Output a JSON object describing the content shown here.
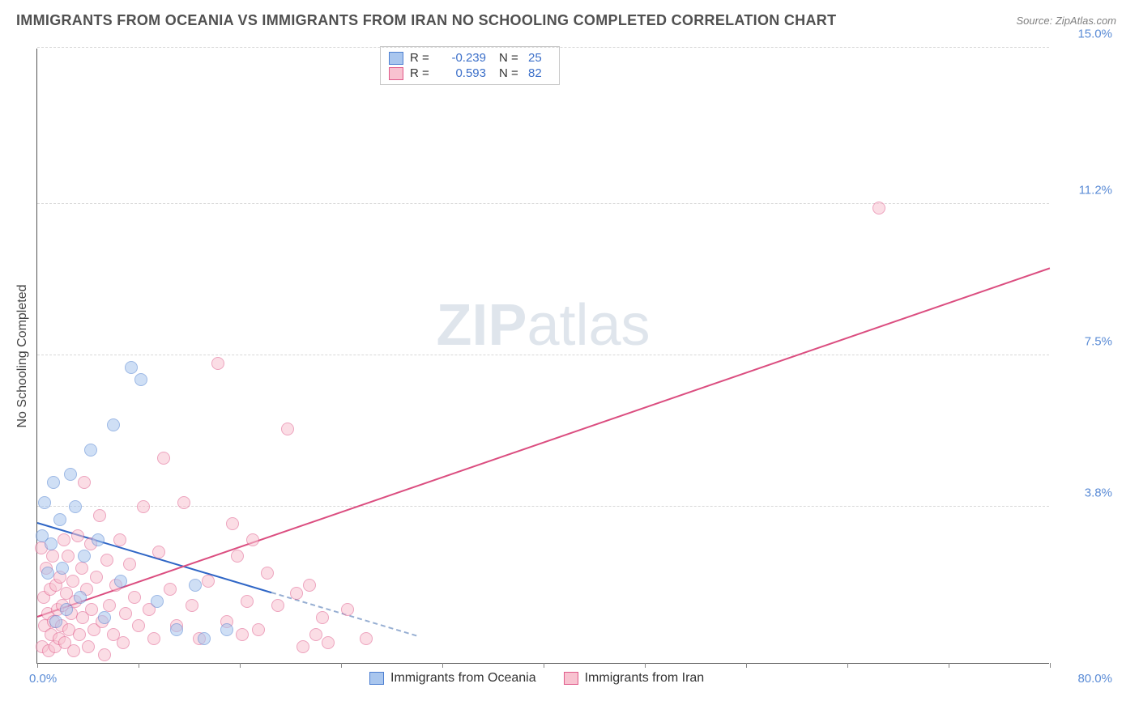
{
  "title": "IMMIGRANTS FROM OCEANIA VS IMMIGRANTS FROM IRAN NO SCHOOLING COMPLETED CORRELATION CHART",
  "source": "Source: ZipAtlas.com",
  "watermark_bold": "ZIP",
  "watermark_rest": "atlas",
  "ylabel": "No Schooling Completed",
  "chart": {
    "type": "scatter_with_regression",
    "background_color": "#ffffff",
    "grid_color": "#d8d8d8",
    "axis_color": "#555555",
    "tick_color": "#5b8cd6",
    "xlim": [
      0,
      80
    ],
    "ylim": [
      0,
      15
    ],
    "xtick_marks": [
      0,
      8,
      16,
      24,
      32,
      40,
      48,
      56,
      64,
      72,
      80
    ],
    "xtick_labels": {
      "min": "0.0%",
      "max": "80.0%"
    },
    "ygrid": [
      {
        "v": 3.8,
        "label": "3.8%"
      },
      {
        "v": 7.5,
        "label": "7.5%"
      },
      {
        "v": 11.2,
        "label": "11.2%"
      },
      {
        "v": 15.0,
        "label": "15.0%"
      }
    ],
    "marker_radius": 8,
    "marker_opacity": 0.55,
    "line_width": 2,
    "series": [
      {
        "key": "oceania",
        "label": "Immigrants from Oceania",
        "fill": "#a9c6ee",
        "stroke": "#4d7fd1",
        "line_color": "#2f66c6",
        "dash_color": "#96aed2",
        "R": "-0.239",
        "N": "25",
        "regression": {
          "x0": 0,
          "y0": 3.4,
          "x1": 18.5,
          "y1": 1.7,
          "extend_to_x": 30
        },
        "points": [
          [
            0.4,
            3.1
          ],
          [
            0.6,
            3.9
          ],
          [
            0.8,
            2.2
          ],
          [
            1.1,
            2.9
          ],
          [
            1.3,
            4.4
          ],
          [
            1.5,
            1.0
          ],
          [
            1.8,
            3.5
          ],
          [
            2.0,
            2.3
          ],
          [
            2.3,
            1.3
          ],
          [
            2.6,
            4.6
          ],
          [
            3.0,
            3.8
          ],
          [
            3.4,
            1.6
          ],
          [
            3.7,
            2.6
          ],
          [
            4.2,
            5.2
          ],
          [
            4.8,
            3.0
          ],
          [
            5.3,
            1.1
          ],
          [
            6.0,
            5.8
          ],
          [
            6.6,
            2.0
          ],
          [
            7.4,
            7.2
          ],
          [
            8.2,
            6.9
          ],
          [
            9.5,
            1.5
          ],
          [
            11.0,
            0.8
          ],
          [
            12.5,
            1.9
          ],
          [
            13.2,
            0.6
          ],
          [
            15.0,
            0.8
          ]
        ]
      },
      {
        "key": "iran",
        "label": "Immigrants from Iran",
        "fill": "#f8c2d0",
        "stroke": "#e05a8a",
        "line_color": "#db4e80",
        "R": "0.593",
        "N": "82",
        "regression": {
          "x0": 0,
          "y0": 1.1,
          "x1": 80,
          "y1": 9.6
        },
        "points": [
          [
            0.3,
            2.8
          ],
          [
            0.4,
            0.4
          ],
          [
            0.5,
            1.6
          ],
          [
            0.6,
            0.9
          ],
          [
            0.7,
            2.3
          ],
          [
            0.8,
            1.2
          ],
          [
            0.9,
            0.3
          ],
          [
            1.0,
            1.8
          ],
          [
            1.1,
            0.7
          ],
          [
            1.2,
            2.6
          ],
          [
            1.3,
            1.0
          ],
          [
            1.4,
            0.4
          ],
          [
            1.5,
            1.9
          ],
          [
            1.6,
            1.3
          ],
          [
            1.7,
            0.6
          ],
          [
            1.8,
            2.1
          ],
          [
            1.9,
            0.9
          ],
          [
            2.0,
            1.4
          ],
          [
            2.1,
            3.0
          ],
          [
            2.2,
            0.5
          ],
          [
            2.3,
            1.7
          ],
          [
            2.4,
            2.6
          ],
          [
            2.5,
            0.8
          ],
          [
            2.7,
            1.2
          ],
          [
            2.8,
            2.0
          ],
          [
            2.9,
            0.3
          ],
          [
            3.0,
            1.5
          ],
          [
            3.2,
            3.1
          ],
          [
            3.3,
            0.7
          ],
          [
            3.5,
            2.3
          ],
          [
            3.6,
            1.1
          ],
          [
            3.7,
            4.4
          ],
          [
            3.9,
            1.8
          ],
          [
            4.0,
            0.4
          ],
          [
            4.2,
            2.9
          ],
          [
            4.3,
            1.3
          ],
          [
            4.5,
            0.8
          ],
          [
            4.7,
            2.1
          ],
          [
            4.9,
            3.6
          ],
          [
            5.1,
            1.0
          ],
          [
            5.3,
            0.2
          ],
          [
            5.5,
            2.5
          ],
          [
            5.7,
            1.4
          ],
          [
            6.0,
            0.7
          ],
          [
            6.2,
            1.9
          ],
          [
            6.5,
            3.0
          ],
          [
            6.8,
            0.5
          ],
          [
            7.0,
            1.2
          ],
          [
            7.3,
            2.4
          ],
          [
            7.7,
            1.6
          ],
          [
            8.0,
            0.9
          ],
          [
            8.4,
            3.8
          ],
          [
            8.8,
            1.3
          ],
          [
            9.2,
            0.6
          ],
          [
            9.6,
            2.7
          ],
          [
            10.0,
            5.0
          ],
          [
            10.5,
            1.8
          ],
          [
            11.0,
            0.9
          ],
          [
            11.6,
            3.9
          ],
          [
            12.2,
            1.4
          ],
          [
            12.8,
            0.6
          ],
          [
            13.5,
            2.0
          ],
          [
            14.3,
            7.3
          ],
          [
            15.0,
            1.0
          ],
          [
            15.4,
            3.4
          ],
          [
            15.8,
            2.6
          ],
          [
            16.2,
            0.7
          ],
          [
            16.6,
            1.5
          ],
          [
            17.0,
            3.0
          ],
          [
            17.5,
            0.8
          ],
          [
            18.2,
            2.2
          ],
          [
            19.0,
            1.4
          ],
          [
            19.8,
            5.7
          ],
          [
            20.5,
            1.7
          ],
          [
            21.0,
            0.4
          ],
          [
            21.5,
            1.9
          ],
          [
            22.0,
            0.7
          ],
          [
            22.5,
            1.1
          ],
          [
            23.0,
            0.5
          ],
          [
            24.5,
            1.3
          ],
          [
            26.0,
            0.6
          ],
          [
            66.5,
            11.1
          ]
        ]
      }
    ]
  },
  "legend_top": {
    "r_label": "R =",
    "n_label": "N ="
  }
}
